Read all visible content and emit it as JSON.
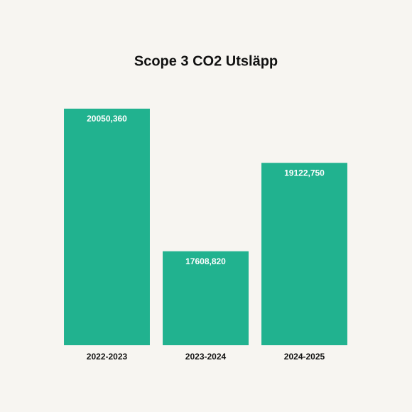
{
  "chart_data": {
    "type": "bar",
    "title": "Scope 3 CO2 Utsläpp",
    "categories": [
      "2022-2023",
      "2023-2024",
      "2024-2025"
    ],
    "values": [
      20050.36,
      17608.82,
      19122.75
    ],
    "value_labels": [
      "20050,360",
      "17608,820",
      "19122,750"
    ],
    "color": "#21b28f",
    "ylim": [
      16000,
      20500
    ]
  }
}
